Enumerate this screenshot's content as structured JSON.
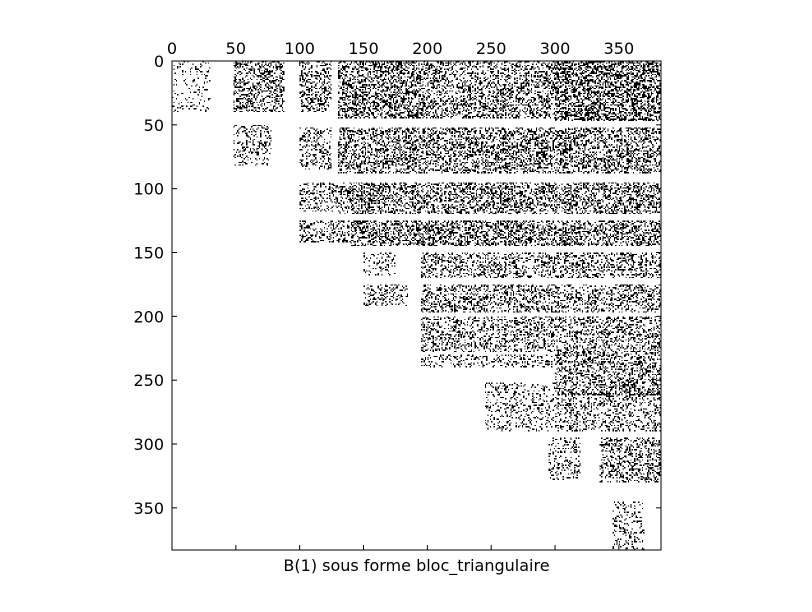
{
  "chart_data": {
    "type": "heatmap",
    "subtype": "sparsity-pattern",
    "title": "",
    "xlabel": "B(1) sous forme bloc_triangulaire",
    "ylabel": "",
    "n_rows": 383,
    "n_cols": 383,
    "xlim": [
      0,
      383
    ],
    "ylim": [
      383,
      0
    ],
    "x_ticks": [
      0,
      50,
      100,
      150,
      200,
      250,
      300,
      350
    ],
    "y_ticks": [
      0,
      50,
      100,
      150,
      200,
      250,
      300,
      350
    ],
    "x_axis_position": "top",
    "grid": false,
    "legend": "none",
    "colors": {
      "nonzero": "#000000",
      "background": "#ffffff",
      "frame": "#000000"
    },
    "nonzero_blocks": [
      {
        "rows": [
          0,
          40
        ],
        "cols": [
          0,
          30
        ],
        "density": 0.18
      },
      {
        "rows": [
          0,
          40
        ],
        "cols": [
          48,
          88
        ],
        "density": 0.55
      },
      {
        "rows": [
          0,
          40
        ],
        "cols": [
          100,
          125
        ],
        "density": 0.5
      },
      {
        "rows": [
          0,
          45
        ],
        "cols": [
          130,
          200
        ],
        "density": 0.65
      },
      {
        "rows": [
          0,
          45
        ],
        "cols": [
          200,
          300
        ],
        "density": 0.55
      },
      {
        "rows": [
          0,
          47
        ],
        "cols": [
          300,
          383
        ],
        "density": 0.75
      },
      {
        "rows": [
          50,
          82
        ],
        "cols": [
          48,
          78
        ],
        "density": 0.35
      },
      {
        "rows": [
          52,
          85
        ],
        "cols": [
          100,
          125
        ],
        "density": 0.4
      },
      {
        "rows": [
          52,
          88
        ],
        "cols": [
          130,
          383
        ],
        "density": 0.6
      },
      {
        "rows": [
          95,
          118
        ],
        "cols": [
          100,
          130
        ],
        "density": 0.4
      },
      {
        "rows": [
          95,
          120
        ],
        "cols": [
          130,
          383
        ],
        "density": 0.6
      },
      {
        "rows": [
          125,
          142
        ],
        "cols": [
          100,
          140
        ],
        "density": 0.45
      },
      {
        "rows": [
          125,
          145
        ],
        "cols": [
          140,
          383
        ],
        "density": 0.65
      },
      {
        "rows": [
          150,
          168
        ],
        "cols": [
          150,
          175
        ],
        "density": 0.3
      },
      {
        "rows": [
          150,
          170
        ],
        "cols": [
          195,
          383
        ],
        "density": 0.45
      },
      {
        "rows": [
          175,
          192
        ],
        "cols": [
          150,
          185
        ],
        "density": 0.35
      },
      {
        "rows": [
          175,
          197
        ],
        "cols": [
          195,
          383
        ],
        "density": 0.5
      },
      {
        "rows": [
          200,
          228
        ],
        "cols": [
          195,
          383
        ],
        "density": 0.45
      },
      {
        "rows": [
          230,
          240
        ],
        "cols": [
          195,
          300
        ],
        "density": 0.35
      },
      {
        "rows": [
          228,
          262
        ],
        "cols": [
          300,
          383
        ],
        "density": 0.55
      },
      {
        "rows": [
          252,
          290
        ],
        "cols": [
          245,
          300
        ],
        "density": 0.3
      },
      {
        "rows": [
          260,
          290
        ],
        "cols": [
          300,
          383
        ],
        "density": 0.4
      },
      {
        "rows": [
          295,
          328
        ],
        "cols": [
          295,
          320
        ],
        "density": 0.3
      },
      {
        "rows": [
          295,
          330
        ],
        "cols": [
          335,
          383
        ],
        "density": 0.5
      },
      {
        "rows": [
          345,
          383
        ],
        "cols": [
          345,
          370
        ],
        "density": 0.3
      }
    ]
  }
}
